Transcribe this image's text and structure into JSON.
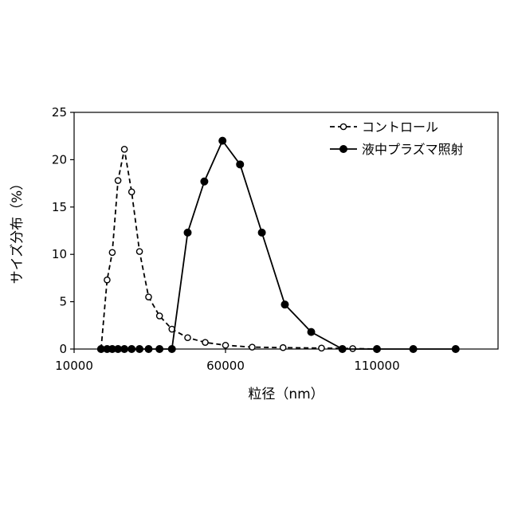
{
  "chart_data": {
    "type": "line",
    "title": "",
    "xlabel": "粒径（nm）",
    "ylabel": "サイズ分布（%）",
    "xlim": [
      10000,
      150000
    ],
    "ylim": [
      0,
      25
    ],
    "x_ticks": [
      10000,
      60000,
      110000
    ],
    "x_tick_labels": [
      "10000",
      "60000",
      "110000"
    ],
    "y_ticks": [
      0,
      5,
      10,
      15,
      20,
      25
    ],
    "y_tick_labels": [
      "0",
      "5",
      "10",
      "15",
      "20",
      "25"
    ],
    "grid": false,
    "legend_position": "top-right",
    "series": [
      {
        "name": "コントロール",
        "style": "dashed",
        "marker": "open-circle",
        "color": "#000000",
        "points": [
          [
            18900,
            0
          ],
          [
            20900,
            7.3
          ],
          [
            22600,
            10.2
          ],
          [
            24500,
            17.8
          ],
          [
            26600,
            21.1
          ],
          [
            29000,
            16.6
          ],
          [
            31600,
            10.3
          ],
          [
            34600,
            5.5
          ],
          [
            38200,
            3.5
          ],
          [
            42300,
            2.1
          ],
          [
            47500,
            1.2
          ],
          [
            53300,
            0.7
          ],
          [
            60000,
            0.4
          ],
          [
            68800,
            0.2
          ],
          [
            79000,
            0.15
          ],
          [
            91700,
            0.1
          ],
          [
            102000,
            0.05
          ],
          [
            110000,
            0
          ]
        ]
      },
      {
        "name": "液中プラズマ照射",
        "style": "solid",
        "marker": "filled-circle",
        "color": "#000000",
        "points": [
          [
            18900,
            0
          ],
          [
            20900,
            0
          ],
          [
            22600,
            0
          ],
          [
            24500,
            0
          ],
          [
            26600,
            0
          ],
          [
            29000,
            0
          ],
          [
            31600,
            0
          ],
          [
            34600,
            0
          ],
          [
            38200,
            0
          ],
          [
            42300,
            0
          ],
          [
            47500,
            12.3
          ],
          [
            53000,
            17.7
          ],
          [
            59000,
            22.0
          ],
          [
            64800,
            19.5
          ],
          [
            72000,
            12.3
          ],
          [
            79600,
            4.7
          ],
          [
            88300,
            1.8
          ],
          [
            98600,
            0
          ],
          [
            110000,
            0
          ],
          [
            122000,
            0
          ],
          [
            136000,
            0
          ]
        ]
      }
    ]
  }
}
